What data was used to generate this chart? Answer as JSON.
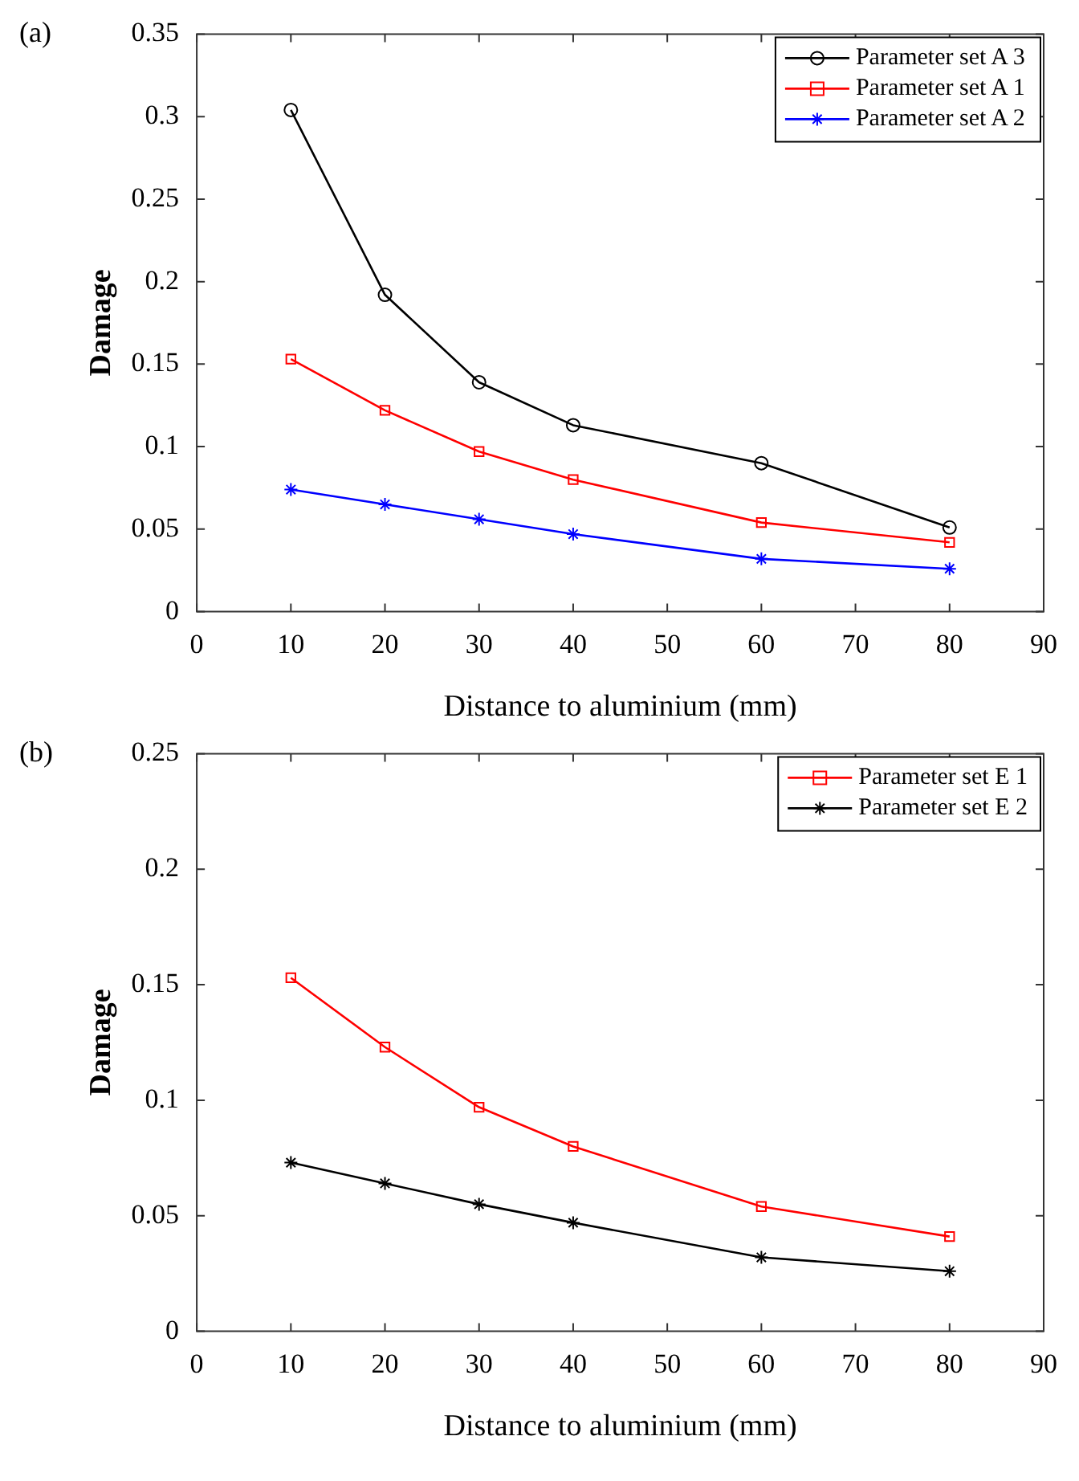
{
  "chart_data": [
    {
      "type": "line",
      "annotations": [
        "(a)"
      ],
      "xlabel": "Distance to aluminium (mm)",
      "ylabel": "Damage",
      "x": [
        10,
        20,
        30,
        40,
        60,
        80
      ],
      "xlim": [
        0,
        90
      ],
      "xticks": [
        0,
        10,
        20,
        30,
        40,
        50,
        60,
        70,
        80,
        90
      ],
      "ylim": [
        0,
        0.35
      ],
      "yticks": [
        0,
        0.05,
        0.1,
        0.15,
        0.2,
        0.25,
        0.3,
        0.35
      ],
      "grid": false,
      "legend": "top right",
      "line_style": "solid",
      "series": [
        {
          "name": "Parameter set A 3",
          "color": "#000000",
          "marker": "circle",
          "values": [
            0.304,
            0.192,
            0.139,
            0.113,
            0.09,
            0.051
          ]
        },
        {
          "name": "Parameter set A 1",
          "color": "#ff0000",
          "marker": "square",
          "values": [
            0.153,
            0.122,
            0.097,
            0.08,
            0.054,
            0.042
          ]
        },
        {
          "name": "Parameter set A 2",
          "color": "#0000ff",
          "marker": "cross",
          "values": [
            0.074,
            0.065,
            0.056,
            0.047,
            0.032,
            0.026
          ]
        }
      ]
    },
    {
      "type": "line",
      "annotations": [
        "(b)"
      ],
      "xlabel": "Distance to aluminium (mm)",
      "ylabel": "Damage",
      "x": [
        10,
        20,
        30,
        40,
        60,
        80
      ],
      "xlim": [
        0,
        90
      ],
      "xticks": [
        0,
        10,
        20,
        30,
        40,
        50,
        60,
        70,
        80,
        90
      ],
      "ylim": [
        0,
        0.25
      ],
      "yticks": [
        0,
        0.05,
        0.1,
        0.15,
        0.2,
        0.25
      ],
      "grid": false,
      "legend": "top right",
      "line_style": "solid",
      "series": [
        {
          "name": "Parameter set E 1",
          "color": "#ff0000",
          "marker": "square",
          "values": [
            0.153,
            0.123,
            0.097,
            0.08,
            0.054,
            0.041
          ]
        },
        {
          "name": "Parameter set E 2",
          "color": "#000000",
          "marker": "cross",
          "values": [
            0.073,
            0.064,
            0.055,
            0.047,
            0.032,
            0.026
          ]
        }
      ]
    }
  ]
}
